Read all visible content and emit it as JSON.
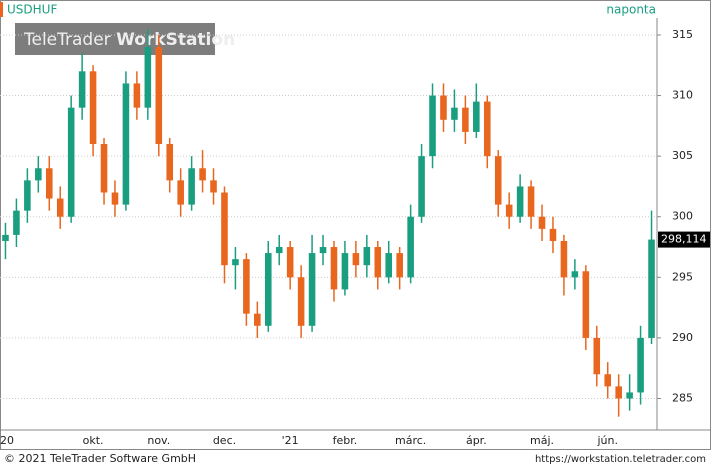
{
  "chart_data": {
    "type": "candlestick",
    "title": "USDHUF",
    "interval": "naponta",
    "watermark": [
      "TeleTrader",
      "WorkStation"
    ],
    "categories": [
      "'20",
      null,
      null,
      null,
      null,
      null,
      null,
      null,
      "okt.",
      null,
      null,
      null,
      null,
      null,
      "nov.",
      null,
      null,
      null,
      null,
      null,
      "dec.",
      null,
      null,
      null,
      null,
      null,
      "'21",
      null,
      null,
      null,
      null,
      "febr.",
      null,
      null,
      null,
      null,
      null,
      "márc.",
      null,
      null,
      null,
      null,
      null,
      "ápr.",
      null,
      null,
      null,
      null,
      null,
      "máj.",
      null,
      null,
      null,
      null,
      null,
      "jún.",
      null,
      null,
      null,
      null
    ],
    "open": [
      298,
      298.5,
      300.5,
      303,
      304,
      301.5,
      300,
      309,
      312,
      306,
      302,
      301,
      311,
      309,
      314,
      306,
      303,
      301,
      304,
      303,
      302,
      296,
      296.5,
      292,
      291,
      297,
      297.5,
      295,
      291,
      297,
      297.5,
      294,
      297,
      296,
      297.5,
      295,
      297,
      295,
      300,
      305,
      310,
      308,
      309,
      307,
      309.5,
      305,
      301,
      300,
      302.5,
      300,
      299,
      298,
      295,
      295.5,
      290,
      287,
      286,
      285,
      285.5,
      290
    ],
    "high": [
      299.5,
      301.5,
      304,
      305,
      305,
      302.5,
      310,
      313.5,
      312.5,
      306.5,
      303,
      312,
      312,
      315.5,
      315,
      306.5,
      304,
      305,
      305.5,
      304,
      302.5,
      297.5,
      297,
      293,
      298,
      298.5,
      298,
      296,
      298.5,
      298.5,
      298,
      298,
      298,
      298.5,
      298,
      298,
      297.5,
      301,
      306,
      311,
      311,
      310.5,
      310,
      311,
      310,
      305.5,
      302,
      303.5,
      303,
      301,
      300,
      298.5,
      296.5,
      296,
      291,
      288,
      287,
      287,
      291,
      300.5
    ],
    "low": [
      296.5,
      297.5,
      299.5,
      302,
      300.5,
      299,
      299.5,
      308,
      305,
      301,
      300,
      300.5,
      308,
      308,
      305,
      302,
      300,
      300.5,
      302,
      301,
      294.5,
      294,
      291,
      290,
      290.5,
      296,
      294,
      290,
      290.5,
      296,
      293,
      293.5,
      295,
      295,
      294,
      294.5,
      294,
      294.5,
      299.5,
      304,
      307,
      307,
      306,
      306.5,
      304,
      300,
      299,
      299.5,
      299,
      298,
      297,
      293.5,
      294,
      289,
      286,
      285,
      283.5,
      284,
      284.5,
      289.5
    ],
    "close": [
      298.5,
      300.5,
      303,
      304,
      301.5,
      300,
      309,
      312,
      306,
      302,
      301,
      311,
      309,
      314,
      306,
      303,
      301,
      304,
      303,
      302,
      296,
      296.5,
      292,
      291,
      297,
      297.5,
      295,
      291,
      297,
      297.5,
      294,
      297,
      296,
      297.5,
      295,
      297,
      295,
      300,
      305,
      310,
      308,
      309,
      307,
      309.5,
      305,
      301,
      300,
      302.5,
      300,
      299,
      298,
      295,
      295.5,
      290,
      287,
      286,
      285,
      285.5,
      290,
      298.114
    ],
    "up_color": "#1a9e80",
    "down_color": "#e8661e",
    "last_price": {
      "value": 298.114,
      "label": "298,114"
    },
    "ylim": [
      282.4,
      316.4
    ],
    "yticks": [
      285,
      290,
      295,
      300,
      305,
      310,
      315
    ],
    "grid": true
  },
  "footer": {
    "left": "© 2021 TeleTrader Software GmbH",
    "right": "https://workstation.teletrader.com"
  }
}
